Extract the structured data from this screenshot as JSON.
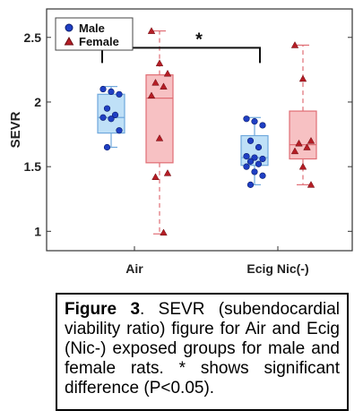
{
  "chart_data": {
    "type": "box",
    "ylabel": "SEVR",
    "ylim": [
      0.85,
      2.72
    ],
    "yticks": [
      1,
      1.5,
      2,
      2.5
    ],
    "ytick_labels": [
      "1",
      "1.5",
      "2",
      "2.5"
    ],
    "categories": [
      "Air",
      "Ecig Nic(-)"
    ],
    "legend": {
      "position": "top-left",
      "entries": [
        "Male",
        "Female"
      ]
    },
    "colors": {
      "male_box": "#bfe0f7",
      "male_edge": "#6fa8dc",
      "male_point": "#1f3fc4",
      "female_box": "#f7c1c3",
      "female_edge": "#e06d74",
      "female_point": "#b51d25"
    },
    "series": [
      {
        "name": "Male",
        "boxes": [
          {
            "category": "Air",
            "min": 1.65,
            "q1": 1.76,
            "median": 1.88,
            "q3": 2.06,
            "max": 2.12,
            "points": [
              2.1,
              2.08,
              2.06,
              1.95,
              1.9,
              1.88,
              1.87,
              1.78,
              1.65
            ]
          },
          {
            "category": "Ecig Nic(-)",
            "min": 1.36,
            "q1": 1.51,
            "median": 1.57,
            "q3": 1.74,
            "max": 1.88,
            "points": [
              1.87,
              1.85,
              1.82,
              1.7,
              1.65,
              1.58,
              1.57,
              1.56,
              1.54,
              1.52,
              1.5,
              1.46,
              1.43,
              1.36
            ]
          }
        ]
      },
      {
        "name": "Female",
        "boxes": [
          {
            "category": "Air",
            "min": 0.98,
            "q1": 1.53,
            "median": 2.03,
            "q3": 2.21,
            "max": 2.55,
            "points": [
              2.55,
              2.3,
              2.22,
              2.15,
              2.12,
              2.05,
              1.72,
              1.45,
              1.42,
              0.99
            ]
          },
          {
            "category": "Ecig Nic(-)",
            "min": 1.36,
            "q1": 1.56,
            "median": 1.67,
            "q3": 1.93,
            "max": 2.44,
            "points": [
              2.44,
              2.18,
              1.7,
              1.68,
              1.65,
              1.62,
              1.5,
              1.36
            ]
          }
        ]
      }
    ],
    "annotations": [
      {
        "text": "*",
        "between": [
          "Air",
          "Ecig Nic(-)"
        ],
        "y": 2.42
      }
    ]
  },
  "caption": {
    "label": "Figure 3",
    "text": ". SEVR (subendocardial viability ratio) figure for Air and Ecig (Nic-) exposed groups for male and female rats. * shows significant difference (P<0.05)."
  }
}
